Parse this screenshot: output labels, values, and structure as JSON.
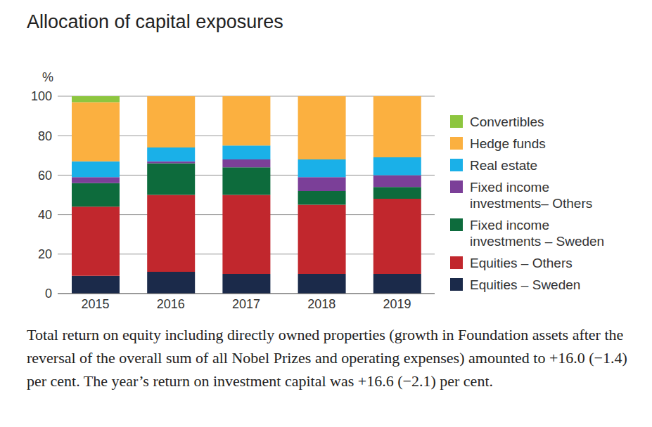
{
  "chart_data": {
    "type": "bar",
    "title": "Allocation of capital exposures",
    "y_label": "%",
    "stacked": true,
    "grid": true,
    "legend": "right",
    "categories": [
      "2015",
      "2016",
      "2017",
      "2018",
      "2019"
    ],
    "ylim": [
      0,
      100
    ],
    "yticks": [
      0,
      20,
      40,
      60,
      80,
      100
    ],
    "series": [
      {
        "name": "Equities – Sweden",
        "color": "#1b2a4a",
        "values": [
          9,
          11,
          10,
          10,
          10
        ]
      },
      {
        "name": "Equities – Others",
        "color": "#c1272d",
        "values": [
          35,
          39,
          40,
          35,
          38
        ]
      },
      {
        "name": "Fixed income investments – Sweden",
        "color": "#0d6b3c",
        "values": [
          12,
          16,
          14,
          7,
          6
        ]
      },
      {
        "name": "Fixed income investments– Others",
        "color": "#7b3f98",
        "values": [
          3,
          1,
          4,
          7,
          6
        ]
      },
      {
        "name": "Real estate",
        "color": "#1ab0e8",
        "values": [
          8,
          7,
          7,
          9,
          9
        ]
      },
      {
        "name": "Hedge funds",
        "color": "#fbb040",
        "values": [
          30,
          26,
          25,
          32,
          31
        ]
      },
      {
        "name": "Convertibles",
        "color": "#8dc63f",
        "values": [
          3,
          0,
          0,
          0,
          0
        ]
      }
    ],
    "annotation": "Total return on equity including directly owned properties (growth in Foundation assets after the reversal of the overall sum of all Nobel Prizes and operating expenses) amounted to +16.0 (−1.4) per cent. The year’s return on investment capital was +16.6 (−2.1) per cent."
  }
}
